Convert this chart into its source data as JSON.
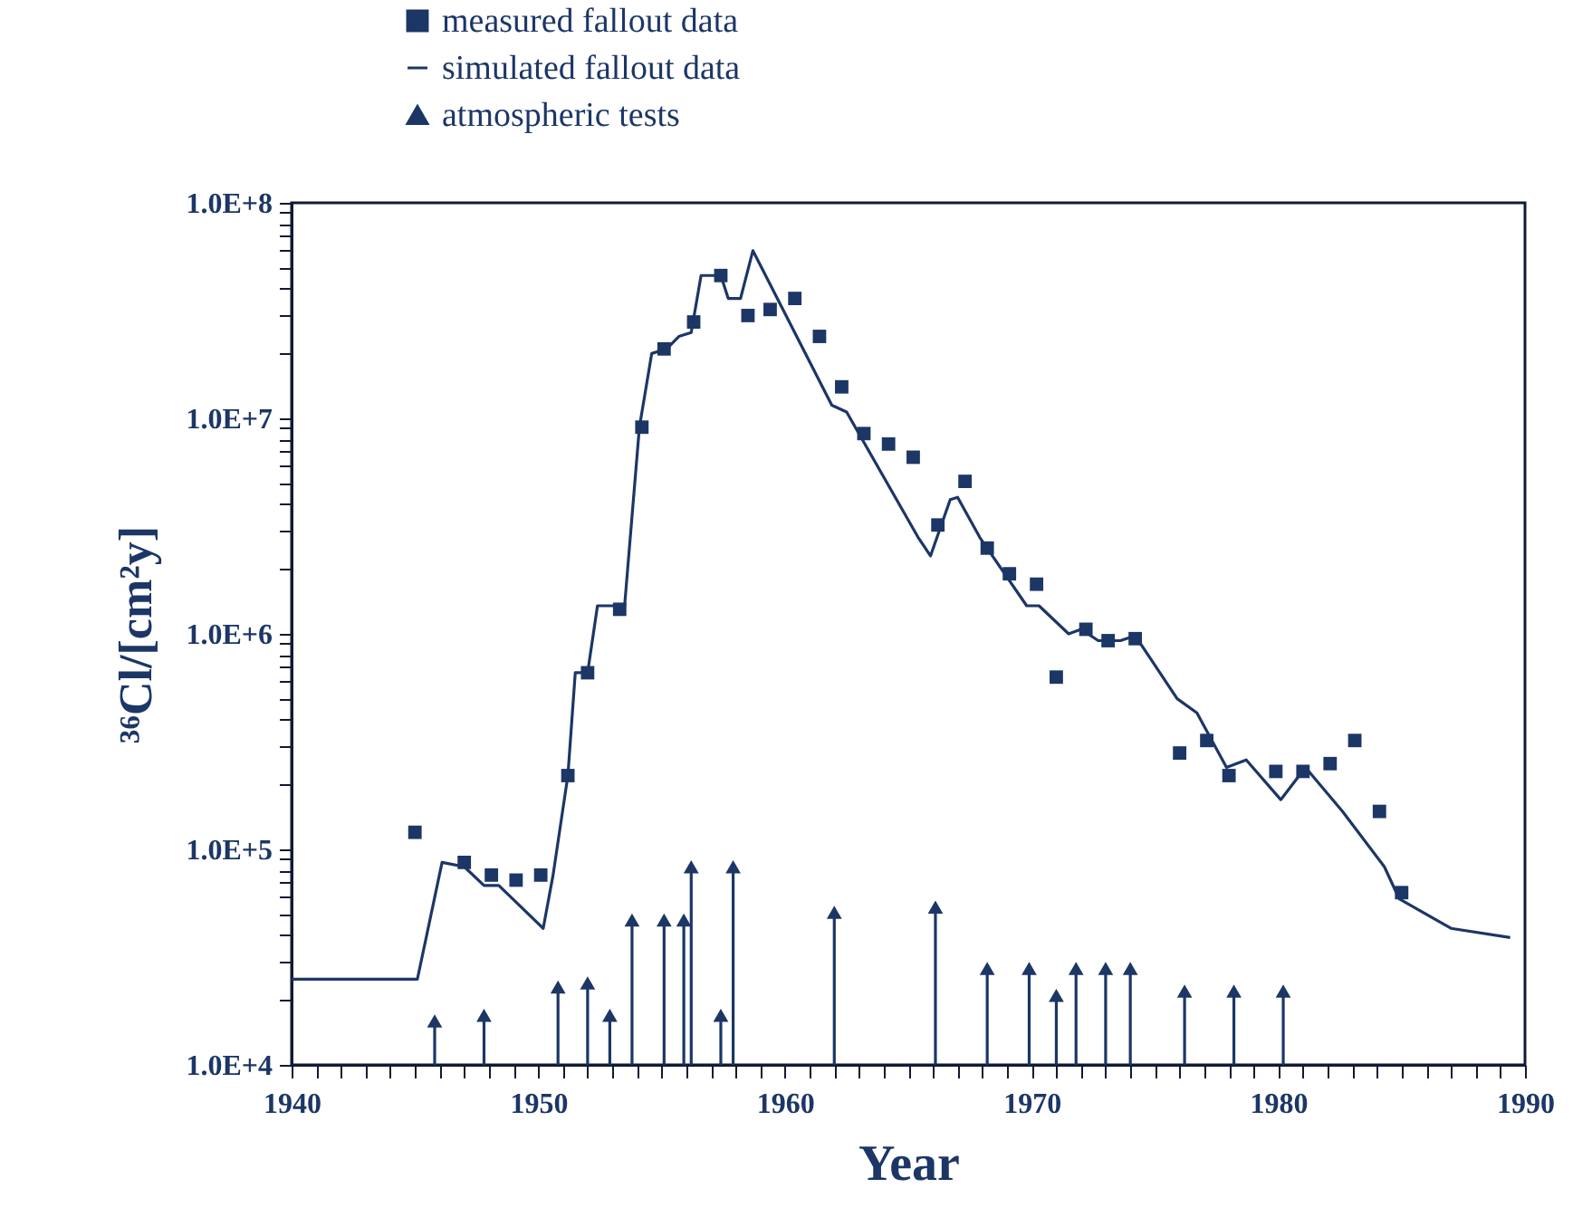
{
  "chart_data": {
    "type": "scatter",
    "xlabel": "Year",
    "ylabel": "³⁶Cl/[cm²y]",
    "log": "y",
    "legend": "top left",
    "xlim": [
      1940,
      1990
    ],
    "ylim": [
      10000,
      100000000
    ],
    "xticks": [
      1940,
      {
        "value": 1941,
        "label": null
      },
      {
        "value": 1942,
        "label": null
      },
      {
        "value": 1943,
        "label": null
      },
      {
        "value": 1944,
        "label": null
      },
      {
        "value": 1945,
        "label": null
      },
      {
        "value": 1946,
        "label": null
      },
      {
        "value": 1947,
        "label": null
      },
      {
        "value": 1948,
        "label": null
      },
      {
        "value": 1949,
        "label": null
      },
      1950,
      {
        "value": 1951,
        "label": null
      },
      {
        "value": 1952,
        "label": null
      },
      {
        "value": 1953,
        "label": null
      },
      {
        "value": 1954,
        "label": null
      },
      {
        "value": 1955,
        "label": null
      },
      {
        "value": 1956,
        "label": null
      },
      {
        "value": 1957,
        "label": null
      },
      {
        "value": 1958,
        "label": null
      },
      {
        "value": 1959,
        "label": null
      },
      1960,
      {
        "value": 1961,
        "label": null
      },
      {
        "value": 1962,
        "label": null
      },
      {
        "value": 1963,
        "label": null
      },
      {
        "value": 1964,
        "label": null
      },
      {
        "value": 1965,
        "label": null
      },
      {
        "value": 1966,
        "label": null
      },
      {
        "value": 1967,
        "label": null
      },
      {
        "value": 1968,
        "label": null
      },
      {
        "value": 1969,
        "label": null
      },
      1970,
      {
        "value": 1971,
        "label": null
      },
      {
        "value": 1972,
        "label": null
      },
      {
        "value": 1973,
        "label": null
      },
      {
        "value": 1974,
        "label": null
      },
      {
        "value": 1975,
        "label": null
      },
      {
        "value": 1976,
        "label": null
      },
      {
        "value": 1977,
        "label": null
      },
      {
        "value": 1978,
        "label": null
      },
      {
        "value": 1979,
        "label": null
      },
      1980,
      {
        "value": 1981,
        "label": null
      },
      {
        "value": 1982,
        "label": null
      },
      {
        "value": 1983,
        "label": null
      },
      {
        "value": 1984,
        "label": null
      },
      {
        "value": 1985,
        "label": null
      },
      {
        "value": 1986,
        "label": null
      },
      {
        "value": 1987,
        "label": null
      },
      {
        "value": 1988,
        "label": null
      },
      {
        "value": 1989,
        "label": null
      },
      1990
    ],
    "yticks": [
      {
        "value": 10000,
        "label": "1.0E+4"
      },
      {
        "value": 20000,
        "label": null
      },
      {
        "value": 30000,
        "label": null
      },
      {
        "value": 40000,
        "label": null
      },
      {
        "value": 50000,
        "label": null
      },
      {
        "value": 60000,
        "label": null
      },
      {
        "value": 70000,
        "label": null
      },
      {
        "value": 80000,
        "label": null
      },
      {
        "value": 90000,
        "label": null
      },
      {
        "value": 100000,
        "label": "1.0E+5"
      },
      {
        "value": 200000,
        "label": null
      },
      {
        "value": 300000,
        "label": null
      },
      {
        "value": 400000,
        "label": null
      },
      {
        "value": 500000,
        "label": null
      },
      {
        "value": 600000,
        "label": null
      },
      {
        "value": 700000,
        "label": null
      },
      {
        "value": 800000,
        "label": null
      },
      {
        "value": 900000,
        "label": null
      },
      {
        "value": 1000000,
        "label": "1.0E+6"
      },
      {
        "value": 2000000,
        "label": null
      },
      {
        "value": 3000000,
        "label": null
      },
      {
        "value": 4000000,
        "label": null
      },
      {
        "value": 5000000,
        "label": null
      },
      {
        "value": 6000000,
        "label": null
      },
      {
        "value": 7000000,
        "label": null
      },
      {
        "value": 8000000,
        "label": null
      },
      {
        "value": 9000000,
        "label": null
      },
      {
        "value": 10000000,
        "label": "1.0E+7"
      },
      {
        "value": 20000000,
        "label": null
      },
      {
        "value": 30000000,
        "label": null
      },
      {
        "value": 40000000,
        "label": null
      },
      {
        "value": 50000000,
        "label": null
      },
      {
        "value": 60000000,
        "label": null
      },
      {
        "value": 70000000,
        "label": null
      },
      {
        "value": 80000000,
        "label": null
      },
      {
        "value": 90000000,
        "label": null
      },
      {
        "value": 100000000,
        "label": "1.0E+8"
      }
    ],
    "series": [
      {
        "name": "measured fallout data",
        "marker": "square",
        "color": "#1c3666",
        "x": [
          1945.0,
          1947.0,
          1948.1,
          1949.1,
          1950.1,
          1951.2,
          1952.0,
          1953.3,
          1954.2,
          1955.1,
          1956.3,
          1957.4,
          1958.5,
          1959.4,
          1960.4,
          1961.4,
          1962.3,
          1963.2,
          1964.2,
          1965.2,
          1966.2,
          1967.3,
          1968.2,
          1969.1,
          1970.2,
          1971.0,
          1972.2,
          1973.1,
          1974.2,
          1976.0,
          1977.1,
          1978.0,
          1979.9,
          1981.0,
          1982.1,
          1983.1,
          1984.1,
          1985.0
        ],
        "values": [
          120000,
          87000,
          76000,
          72000,
          76000,
          220000,
          660000,
          1300000,
          9100000,
          21000000,
          28000000,
          46000000,
          30000000,
          32000000,
          36000000,
          24000000,
          14000000,
          8500000,
          7600000,
          6600000,
          3200000,
          5100000,
          2500000,
          1900000,
          1700000,
          630000,
          1050000,
          930000,
          950000,
          280000,
          320000,
          220000,
          230000,
          230000,
          250000,
          320000,
          150000,
          63000
        ]
      },
      {
        "name": "simulated fallout data",
        "type": "line",
        "color": "#1c3666",
        "x": [
          1940,
          1945.1,
          1946.1,
          1947.0,
          1947.8,
          1948.4,
          1950.2,
          1950.6,
          1951.2,
          1951.5,
          1952.0,
          1952.4,
          1953.5,
          1954.1,
          1954.6,
          1955.2,
          1955.7,
          1956.2,
          1956.6,
          1957.4,
          1957.7,
          1958.2,
          1958.7,
          1961.9,
          1962.5,
          1965.4,
          1965.9,
          1966.7,
          1967.0,
          1967.9,
          1969.8,
          1970.3,
          1971.5,
          1972.0,
          1972.7,
          1973.6,
          1974.2,
          1975.9,
          1976.7,
          1977.9,
          1978.7,
          1980.1,
          1981.1,
          1982.6,
          1984.3,
          1984.9,
          1987.0,
          1989.4
        ],
        "values": [
          25000,
          25000,
          87000,
          83000,
          68000,
          68000,
          43000,
          76000,
          220000,
          660000,
          660000,
          1350000,
          1350000,
          9100000,
          20000000,
          21000000,
          24000000,
          25000000,
          46000000,
          46000000,
          36000000,
          36000000,
          60000000,
          11500000,
          10700000,
          2800000,
          2300000,
          4200000,
          4300000,
          2800000,
          1350000,
          1350000,
          1000000,
          1050000,
          930000,
          930000,
          980000,
          500000,
          430000,
          240000,
          260000,
          170000,
          240000,
          150000,
          83000,
          59000,
          43000,
          39000
        ]
      },
      {
        "name": "atmospheric tests",
        "type": "lollipop",
        "marker": "triangle",
        "color": "#1c3666",
        "x": [
          1945.8,
          1947.8,
          1950.8,
          1952.0,
          1952.9,
          1953.8,
          1955.1,
          1955.9,
          1956.2,
          1957.4,
          1957.9,
          1962.0,
          1966.1,
          1968.2,
          1969.9,
          1971.0,
          1971.8,
          1973.0,
          1974.0,
          1976.2,
          1978.2,
          1980.2
        ],
        "values": [
          16000,
          17000,
          23000,
          24000,
          17000,
          47000,
          47000,
          47000,
          83000,
          17000,
          83000,
          51000,
          54000,
          28000,
          28000,
          21000,
          28000,
          28000,
          28000,
          22000,
          22000,
          22000
        ]
      }
    ]
  }
}
